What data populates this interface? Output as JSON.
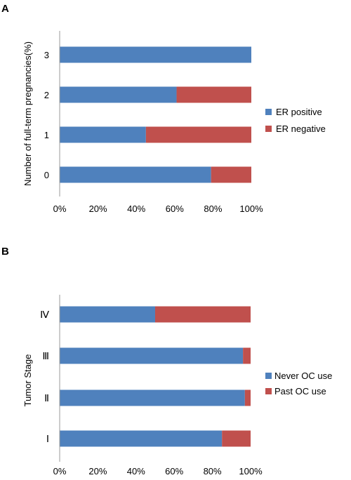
{
  "chart_data": [
    {
      "panel_label": "A",
      "type": "bar",
      "orientation": "horizontal",
      "stacked": "percent",
      "categories": [
        "0",
        "1",
        "2",
        "3"
      ],
      "ylabel": "Number of full-term pregnancies(%)",
      "xlabel": "",
      "xlim": [
        0,
        100
      ],
      "xticks": [
        "0%",
        "20%",
        "40%",
        "60%",
        "80%",
        "100%"
      ],
      "grid": false,
      "legend_position": "right",
      "series": [
        {
          "name": "ER positive",
          "color": "#4f81bd",
          "values": [
            79,
            45,
            61,
            100
          ]
        },
        {
          "name": "ER negative",
          "color": "#c0504d",
          "values": [
            21,
            55,
            39,
            0
          ]
        }
      ]
    },
    {
      "panel_label": "B",
      "type": "bar",
      "orientation": "horizontal",
      "stacked": "percent",
      "categories": [
        "Ⅰ",
        "Ⅱ",
        "Ⅲ",
        "Ⅳ"
      ],
      "ylabel": "Tumor Stage",
      "xlabel": "",
      "xlim": [
        0,
        100
      ],
      "xticks": [
        "0%",
        "20%",
        "40%",
        "60%",
        "80%",
        "100%"
      ],
      "grid": false,
      "legend_position": "right",
      "series": [
        {
          "name": "Never OC use",
          "color": "#4f81bd",
          "values": [
            85,
            97,
            96,
            50
          ]
        },
        {
          "name": "Past OC use",
          "color": "#c0504d",
          "values": [
            15,
            3,
            4,
            50
          ]
        }
      ]
    }
  ]
}
